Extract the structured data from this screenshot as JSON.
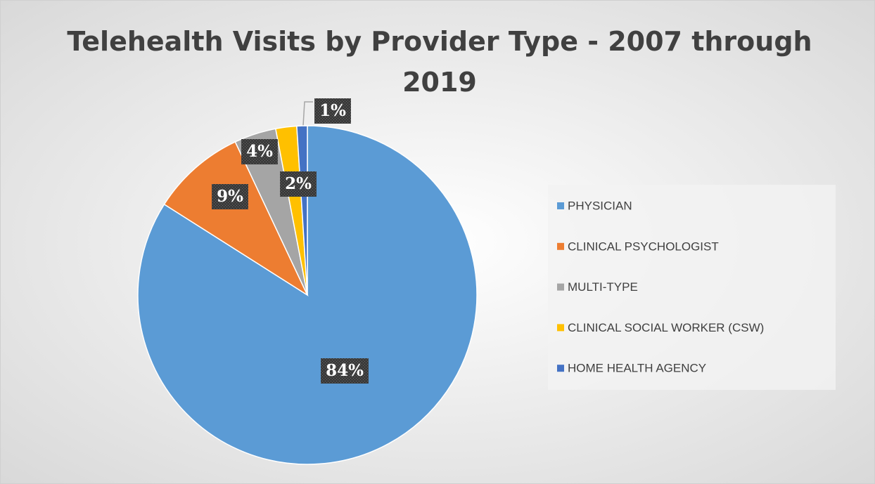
{
  "chart_data": {
    "type": "pie",
    "title": "Telehealth Visits by Provider Type - 2007 through 2019",
    "categories": [
      "PHYSICIAN",
      "CLINICAL PSYCHOLOGIST",
      "MULTI-TYPE",
      "CLINICAL SOCIAL WORKER (CSW)",
      "HOME HEALTH AGENCY"
    ],
    "values": [
      84,
      9,
      4,
      2,
      1
    ],
    "value_labels": [
      "84%",
      "9%",
      "4%",
      "2%",
      "1%"
    ],
    "colors": [
      "#5b9bd5",
      "#ed7d31",
      "#a5a5a5",
      "#ffc000",
      "#4472c4"
    ],
    "legend": "right"
  }
}
